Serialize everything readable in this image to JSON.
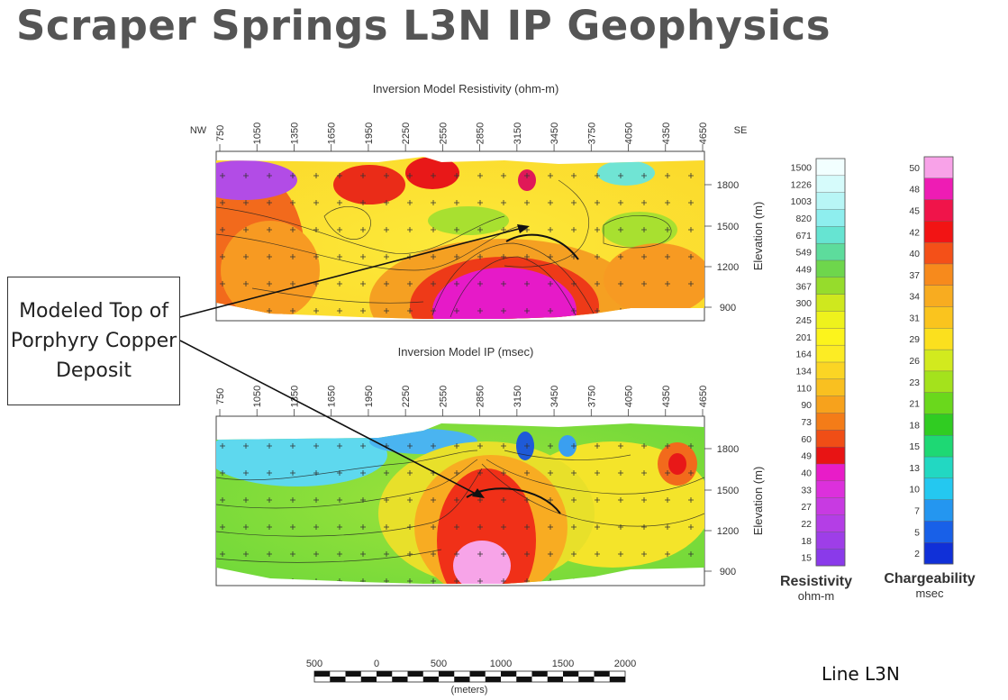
{
  "slide": {
    "title": "Scraper Springs L3N IP Geophysics",
    "line_label": "Line L3N"
  },
  "callout": {
    "text": "Modeled Top of Porphyry Copper Deposit"
  },
  "sections": [
    {
      "title": "Inversion Model Resistivity (ohm-m)",
      "left_label": "NW",
      "right_label": "SE",
      "stations": [
        "750",
        "1050",
        "1350",
        "1650",
        "1950",
        "2250",
        "2550",
        "2850",
        "3150",
        "3450",
        "3750",
        "4050",
        "4350",
        "4650"
      ],
      "elevation_ticks": [
        "1800",
        "1500",
        "1200",
        "900"
      ],
      "elevation_label": "Elevation (m)"
    },
    {
      "title": "Inversion Model IP (msec)",
      "stations": [
        "750",
        "1050",
        "1350",
        "1650",
        "1950",
        "2250",
        "2550",
        "2850",
        "3150",
        "3450",
        "3750",
        "4050",
        "4350",
        "4650"
      ],
      "elevation_ticks": [
        "1800",
        "1500",
        "1200",
        "900"
      ],
      "elevation_label": "Elevation (m)"
    }
  ],
  "legends": {
    "resistivity": {
      "title": "Resistivity",
      "unit": "ohm-m",
      "labels": [
        "1500",
        "1226",
        "1003",
        "820",
        "671",
        "549",
        "449",
        "367",
        "300",
        "245",
        "201",
        "164",
        "134",
        "110",
        "90",
        "73",
        "60",
        "49",
        "40",
        "33",
        "27",
        "22",
        "18",
        "15"
      ],
      "colors": [
        "#f2ffff",
        "#d6fbfb",
        "#b8f6f6",
        "#8eeeee",
        "#66e4d2",
        "#5ddc9c",
        "#6ed64c",
        "#96dc2c",
        "#cfe81e",
        "#eef21c",
        "#fcf41c",
        "#fcec24",
        "#fbd524",
        "#f9c020",
        "#f7a21c",
        "#f47c18",
        "#f04e16",
        "#e81414",
        "#e81cc8",
        "#dc30dc",
        "#c83ae2",
        "#b43ee6",
        "#9e3ee8",
        "#8a3aea"
      ]
    },
    "chargeability": {
      "title": "Chargeability",
      "unit": "msec",
      "labels": [
        "50",
        "48",
        "45",
        "42",
        "40",
        "37",
        "34",
        "31",
        "29",
        "26",
        "23",
        "21",
        "18",
        "15",
        "13",
        "10",
        "7",
        "5",
        "2"
      ],
      "colors": [
        "#f8a2e8",
        "#ee1cb4",
        "#f0144a",
        "#f21414",
        "#f45018",
        "#f78a1c",
        "#f8ac20",
        "#fac41e",
        "#fbe01e",
        "#d2ea1e",
        "#a4e21c",
        "#6ad81c",
        "#30cc22",
        "#1ed874",
        "#22d8c2",
        "#24c8f0",
        "#2496f0",
        "#1860e8",
        "#1030d8"
      ]
    }
  },
  "scale_bar": {
    "labels": [
      "500",
      "0",
      "500",
      "1000",
      "1500",
      "2000"
    ],
    "unit": "(meters)"
  }
}
